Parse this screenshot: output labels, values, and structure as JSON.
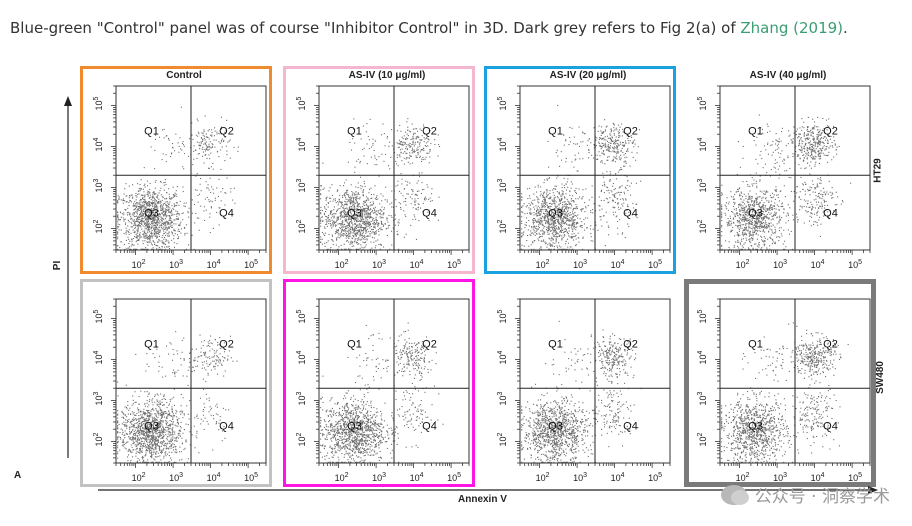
{
  "caption": {
    "text_before": "Blue-green \"Control\" panel was of course \"Inhibitor Control\" in 3D. Dark grey refers to Fig 2(a) of ",
    "link_text": "Zhang (2019)",
    "text_after": "."
  },
  "figure": {
    "panel_letter": "A",
    "x_axis_label": "Annexin V",
    "y_axis_label": "PI",
    "watermark": "公众号 · 洞察学术",
    "colors": {
      "orange": "#f08a2e",
      "pink_light": "#f5b6cf",
      "blue": "#1aa2e0",
      "magenta": "#ff16e6",
      "grey_light": "#c2c2c2",
      "grey_dark": "#7a7a7a",
      "dots": "#6f6f6f"
    }
  },
  "chart_data": [
    {
      "type": "scatter",
      "title": "Control",
      "row": "HT29",
      "xlabel": "Annexin V",
      "ylabel": "PI",
      "xscale": "log",
      "yscale": "log",
      "xlim": [
        30,
        300000
      ],
      "ylim": [
        30,
        300000
      ],
      "x_ticks": [
        "10^2",
        "10^3",
        "10^4",
        "10^5"
      ],
      "y_ticks": [
        "10^2",
        "10^3",
        "10^4",
        "10^5"
      ],
      "gate": {
        "x": 3000,
        "y": 2000
      },
      "quadrant_labels": [
        "Q1",
        "Q2",
        "Q3",
        "Q4"
      ],
      "quadrant_percent_est": {
        "Q1": 3,
        "Q2": 10,
        "Q3": 82,
        "Q4": 5
      },
      "frame": "orange"
    },
    {
      "type": "scatter",
      "title": "AS-IV (10 μg/ml)",
      "row": "HT29",
      "xscale": "log",
      "yscale": "log",
      "xlim": [
        30,
        300000
      ],
      "ylim": [
        30,
        300000
      ],
      "x_ticks": [
        "10^2",
        "10^3",
        "10^4",
        "10^5"
      ],
      "y_ticks": [
        "10^2",
        "10^3",
        "10^4",
        "10^5"
      ],
      "gate": {
        "x": 3000,
        "y": 2000
      },
      "quadrant_labels": [
        "Q1",
        "Q2",
        "Q3",
        "Q4"
      ],
      "quadrant_percent_est": {
        "Q1": 4,
        "Q2": 14,
        "Q3": 74,
        "Q4": 8
      },
      "frame": "pink_light"
    },
    {
      "type": "scatter",
      "title": "AS-IV (20 μg/ml)",
      "row": "HT29",
      "xscale": "log",
      "yscale": "log",
      "xlim": [
        30,
        300000
      ],
      "ylim": [
        30,
        300000
      ],
      "x_ticks": [
        "10^2",
        "10^3",
        "10^4",
        "10^5"
      ],
      "y_ticks": [
        "10^2",
        "10^3",
        "10^4",
        "10^5"
      ],
      "gate": {
        "x": 3000,
        "y": 2000
      },
      "quadrant_labels": [
        "Q1",
        "Q2",
        "Q3",
        "Q4"
      ],
      "quadrant_percent_est": {
        "Q1": 4,
        "Q2": 18,
        "Q3": 68,
        "Q4": 10
      },
      "frame": "blue"
    },
    {
      "type": "scatter",
      "title": "AS-IV (40 μg/ml)",
      "row": "HT29",
      "row_label": "HT29",
      "xscale": "log",
      "yscale": "log",
      "xlim": [
        30,
        300000
      ],
      "ylim": [
        30,
        300000
      ],
      "x_ticks": [
        "10^2",
        "10^3",
        "10^4",
        "10^5"
      ],
      "y_ticks": [
        "10^2",
        "10^3",
        "10^4",
        "10^5"
      ],
      "gate": {
        "x": 3000,
        "y": 2000
      },
      "quadrant_labels": [
        "Q1",
        "Q2",
        "Q3",
        "Q4"
      ],
      "quadrant_percent_est": {
        "Q1": 6,
        "Q2": 24,
        "Q3": 58,
        "Q4": 12
      },
      "frame": "none"
    },
    {
      "type": "scatter",
      "title": "",
      "row": "SW480",
      "xscale": "log",
      "yscale": "log",
      "xlim": [
        30,
        300000
      ],
      "ylim": [
        30,
        300000
      ],
      "x_ticks": [
        "10^2",
        "10^3",
        "10^4",
        "10^5"
      ],
      "y_ticks": [
        "10^2",
        "10^3",
        "10^4",
        "10^5"
      ],
      "gate": {
        "x": 3000,
        "y": 2000
      },
      "quadrant_labels": [
        "Q1",
        "Q2",
        "Q3",
        "Q4"
      ],
      "quadrant_percent_est": {
        "Q1": 3,
        "Q2": 9,
        "Q3": 84,
        "Q4": 4
      },
      "frame": "grey_light"
    },
    {
      "type": "scatter",
      "title": "",
      "row": "SW480",
      "xscale": "log",
      "yscale": "log",
      "xlim": [
        30,
        300000
      ],
      "ylim": [
        30,
        300000
      ],
      "x_ticks": [
        "10^2",
        "10^3",
        "10^4",
        "10^5"
      ],
      "y_ticks": [
        "10^2",
        "10^3",
        "10^4",
        "10^5"
      ],
      "gate": {
        "x": 3000,
        "y": 2000
      },
      "quadrant_labels": [
        "Q1",
        "Q2",
        "Q3",
        "Q4"
      ],
      "quadrant_percent_est": {
        "Q1": 4,
        "Q2": 13,
        "Q3": 76,
        "Q4": 7
      },
      "frame": "magenta"
    },
    {
      "type": "scatter",
      "title": "",
      "row": "SW480",
      "xscale": "log",
      "yscale": "log",
      "xlim": [
        30,
        300000
      ],
      "ylim": [
        30,
        300000
      ],
      "x_ticks": [
        "10^2",
        "10^3",
        "10^4",
        "10^5"
      ],
      "y_ticks": [
        "10^2",
        "10^3",
        "10^4",
        "10^5"
      ],
      "gate": {
        "x": 3000,
        "y": 2000
      },
      "quadrant_labels": [
        "Q1",
        "Q2",
        "Q3",
        "Q4"
      ],
      "quadrant_percent_est": {
        "Q1": 3,
        "Q2": 17,
        "Q3": 71,
        "Q4": 9
      },
      "frame": "none"
    },
    {
      "type": "scatter",
      "title": "",
      "row": "SW480",
      "row_label": "SW480",
      "xscale": "log",
      "yscale": "log",
      "xlim": [
        30,
        300000
      ],
      "ylim": [
        30,
        300000
      ],
      "x_ticks": [
        "10^2",
        "10^3",
        "10^4",
        "10^5"
      ],
      "y_ticks": [
        "10^2",
        "10^3",
        "10^4",
        "10^5"
      ],
      "gate": {
        "x": 3000,
        "y": 2000
      },
      "quadrant_labels": [
        "Q1",
        "Q2",
        "Q3",
        "Q4"
      ],
      "quadrant_percent_est": {
        "Q1": 4,
        "Q2": 22,
        "Q3": 62,
        "Q4": 12
      },
      "frame": "grey_dark"
    }
  ]
}
